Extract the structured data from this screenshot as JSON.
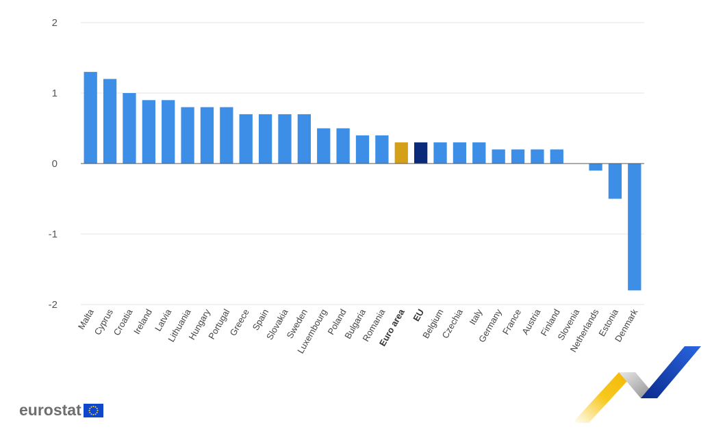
{
  "chart_data": {
    "type": "bar",
    "categories": [
      "Malta",
      "Cyprus",
      "Croatia",
      "Ireland",
      "Latvia",
      "Lithuania",
      "Hungary",
      "Portugal",
      "Greece",
      "Spain",
      "Slovakia",
      "Sweden",
      "Luxembourg",
      "Poland",
      "Bulgaria",
      "Romania",
      "Euro area",
      "EU",
      "Belgium",
      "Czechia",
      "Italy",
      "Germany",
      "France",
      "Austria",
      "Finland",
      "Slovenia",
      "Netherlands",
      "Estonia",
      "Denmark"
    ],
    "values": [
      1.3,
      1.2,
      1.0,
      0.9,
      0.9,
      0.8,
      0.8,
      0.8,
      0.7,
      0.7,
      0.7,
      0.7,
      0.5,
      0.5,
      0.4,
      0.4,
      0.3,
      0.3,
      0.3,
      0.3,
      0.3,
      0.2,
      0.2,
      0.2,
      0.2,
      0.0,
      -0.1,
      -0.5,
      -1.8
    ],
    "highlight": {
      "Euro area": "#d4a017",
      "EU": "#0b2a7a"
    },
    "bold_categories": [
      "Euro area",
      "EU"
    ],
    "bar_color": "#3d8ee6",
    "ylim": [
      -2,
      2
    ],
    "yticks": [
      2,
      1,
      0,
      -1,
      -2
    ],
    "ytick_labels": [
      "2",
      "1",
      "0",
      "-1",
      "-2"
    ],
    "grid": true
  },
  "branding": {
    "logo_text": "eurostat"
  }
}
